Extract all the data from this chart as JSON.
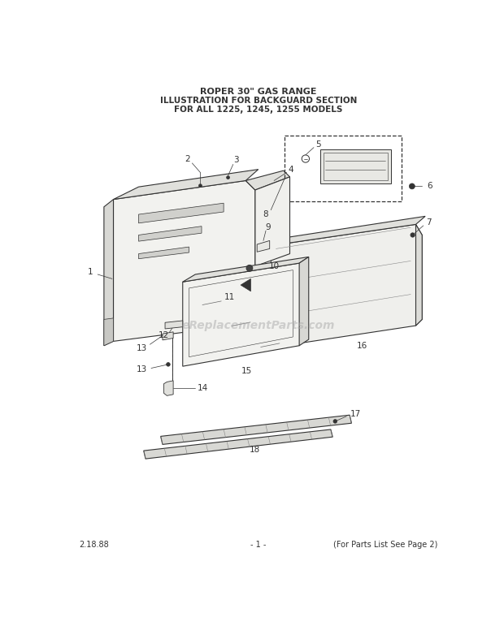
{
  "title_line1": "ROPER 30\" GAS RANGE",
  "title_line2": "ILLUSTRATION FOR BACKGUARD SECTION",
  "title_line3": "FOR ALL 1225, 1245, 1255 MODELS",
  "footer_left": "2.18.88",
  "footer_center": "- 1 -",
  "footer_right": "(For Parts List See Page 2)",
  "watermark": "eReplacementParts.com",
  "bg_color": "#ffffff",
  "line_color": "#333333",
  "fill_light": "#f0f0ee",
  "fill_mid": "#d8d8d4",
  "fill_dark": "#b8b8b4"
}
